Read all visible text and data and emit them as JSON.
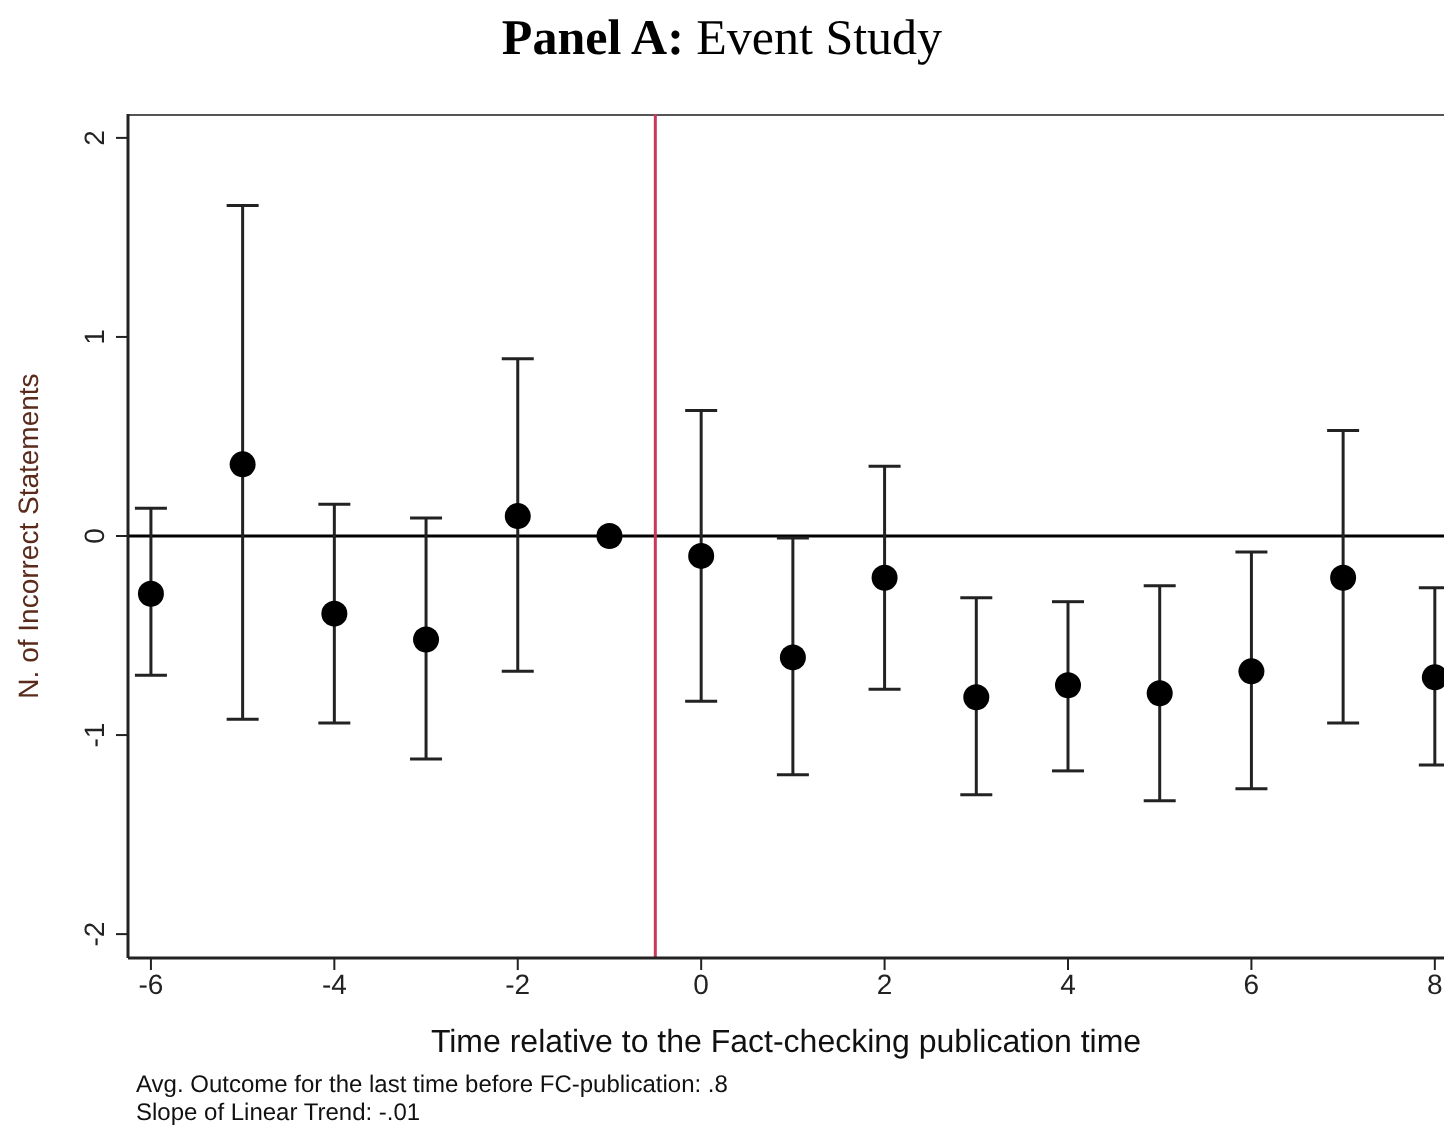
{
  "chart_data": {
    "type": "scatter",
    "title": "Panel A: Event Study",
    "xlabel": "Time relative to the Fact-checking publication time",
    "ylabel": "N. of Incorrect Statements",
    "x": [
      -6,
      -5,
      -4,
      -3,
      -2,
      -1,
      0,
      1,
      2,
      3,
      4,
      5,
      6,
      7,
      8
    ],
    "series": [
      {
        "color": "#000000",
        "values": [
          -0.29,
          0.36,
          -0.39,
          -0.52,
          0.1,
          0,
          -0.1,
          -0.61,
          -0.21,
          -0.81,
          -0.75,
          -0.79,
          -0.68,
          -0.21,
          -0.71
        ],
        "errors": [
          [
            -0.7,
            0.14
          ],
          [
            -0.92,
            1.66
          ],
          [
            -0.94,
            0.16
          ],
          [
            -1.12,
            0.09
          ],
          [
            -0.68,
            0.89
          ],
          null,
          [
            -0.83,
            0.63
          ],
          [
            -1.2,
            -0.01
          ],
          [
            -0.77,
            0.35
          ],
          [
            -1.3,
            -0.31
          ],
          [
            -1.18,
            -0.33
          ],
          [
            -1.33,
            -0.25
          ],
          [
            -1.27,
            -0.08
          ],
          [
            -0.94,
            0.53
          ],
          [
            -1.15,
            -0.26
          ]
        ]
      }
    ],
    "xlim": [
      -6.25,
      8.1
    ],
    "xticks": [
      -6,
      -4,
      -2,
      0,
      2,
      4,
      6,
      8
    ],
    "ylim": [
      -2.12,
      2.12
    ],
    "yticks": [
      -2,
      -1,
      0,
      1,
      2
    ],
    "ref_lines": [
      {
        "axis": "y",
        "value": 0,
        "color": "#000000"
      },
      {
        "axis": "x",
        "value": -0.5,
        "color": "#c8385a"
      }
    ],
    "marker": "circle",
    "grid": false,
    "legend": false,
    "annotations": [
      "Avg. Outcome for the last time before FC-publication: .8",
      "Slope of Linear Trend: -.01"
    ]
  }
}
